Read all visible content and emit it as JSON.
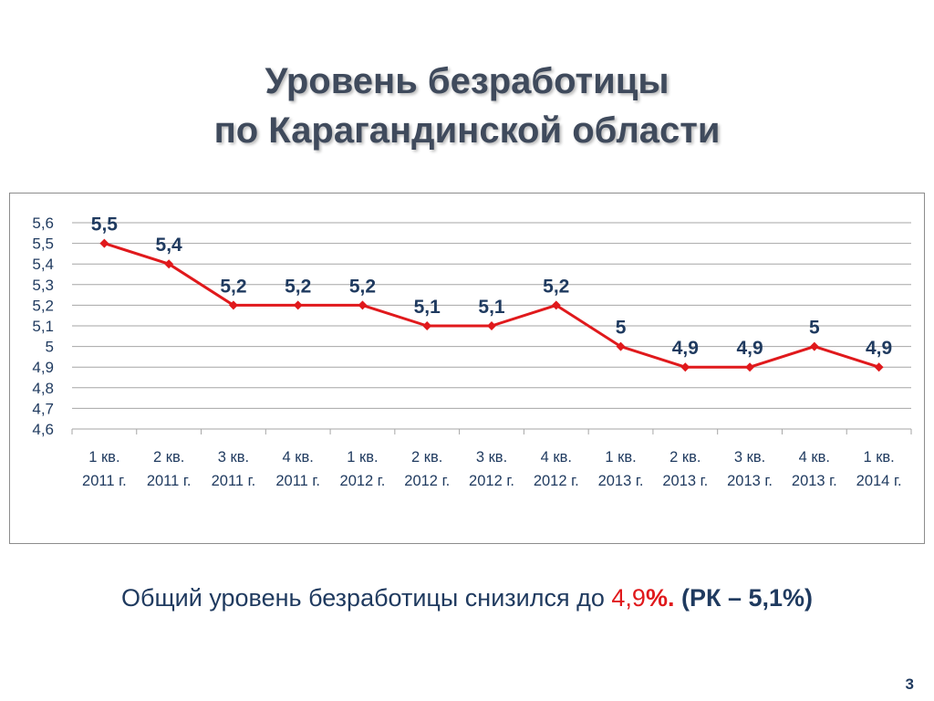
{
  "slide": {
    "title_line1": "Уровень безработицы",
    "title_line2": "по Карагандинской области",
    "footer": {
      "prefix": "Общий уровень безработицы снизился до ",
      "value": "4,9",
      "percent": "%.",
      "comparison": " (РК – 5,1%)"
    },
    "page_number": "3"
  },
  "chart_data": {
    "type": "line",
    "title": "",
    "xlabel": "",
    "ylabel": "",
    "categories": [
      [
        "1 кв.",
        "2011 г."
      ],
      [
        "2 кв.",
        "2011 г."
      ],
      [
        "3 кв.",
        "2011 г."
      ],
      [
        "4 кв.",
        "2011 г."
      ],
      [
        "1 кв.",
        "2012 г."
      ],
      [
        "2 кв.",
        "2012 г."
      ],
      [
        "3 кв.",
        "2012 г."
      ],
      [
        "4 кв.",
        "2012 г."
      ],
      [
        "1 кв.",
        "2013 г."
      ],
      [
        "2 кв.",
        "2013 г."
      ],
      [
        "3 кв.",
        "2013 г."
      ],
      [
        "4 кв.",
        "2013 г."
      ],
      [
        "1 кв.",
        "2014 г."
      ]
    ],
    "series": [
      {
        "values": [
          5.5,
          5.4,
          5.2,
          5.2,
          5.2,
          5.1,
          5.1,
          5.2,
          5.0,
          4.9,
          4.9,
          5.0,
          4.9
        ],
        "labels": [
          "5,5",
          "5,4",
          "5,2",
          "5,2",
          "5,2",
          "5,1",
          "5,1",
          "5,2",
          "5",
          "4,9",
          "4,9",
          "5",
          "4,9"
        ],
        "color": "#e0191c"
      }
    ],
    "ylim": [
      4.6,
      5.6
    ],
    "yticks": [
      "4,6",
      "4,7",
      "4,8",
      "4,9",
      "5",
      "5,1",
      "5,2",
      "5,3",
      "5,4",
      "5,5",
      "5,6"
    ],
    "grid": true,
    "legend": "none",
    "colors": {
      "axis_text": "#1f3a5f",
      "gridline": "#a6a6a6",
      "line": "#e0191c",
      "data_label": "#1f3a5f"
    }
  }
}
